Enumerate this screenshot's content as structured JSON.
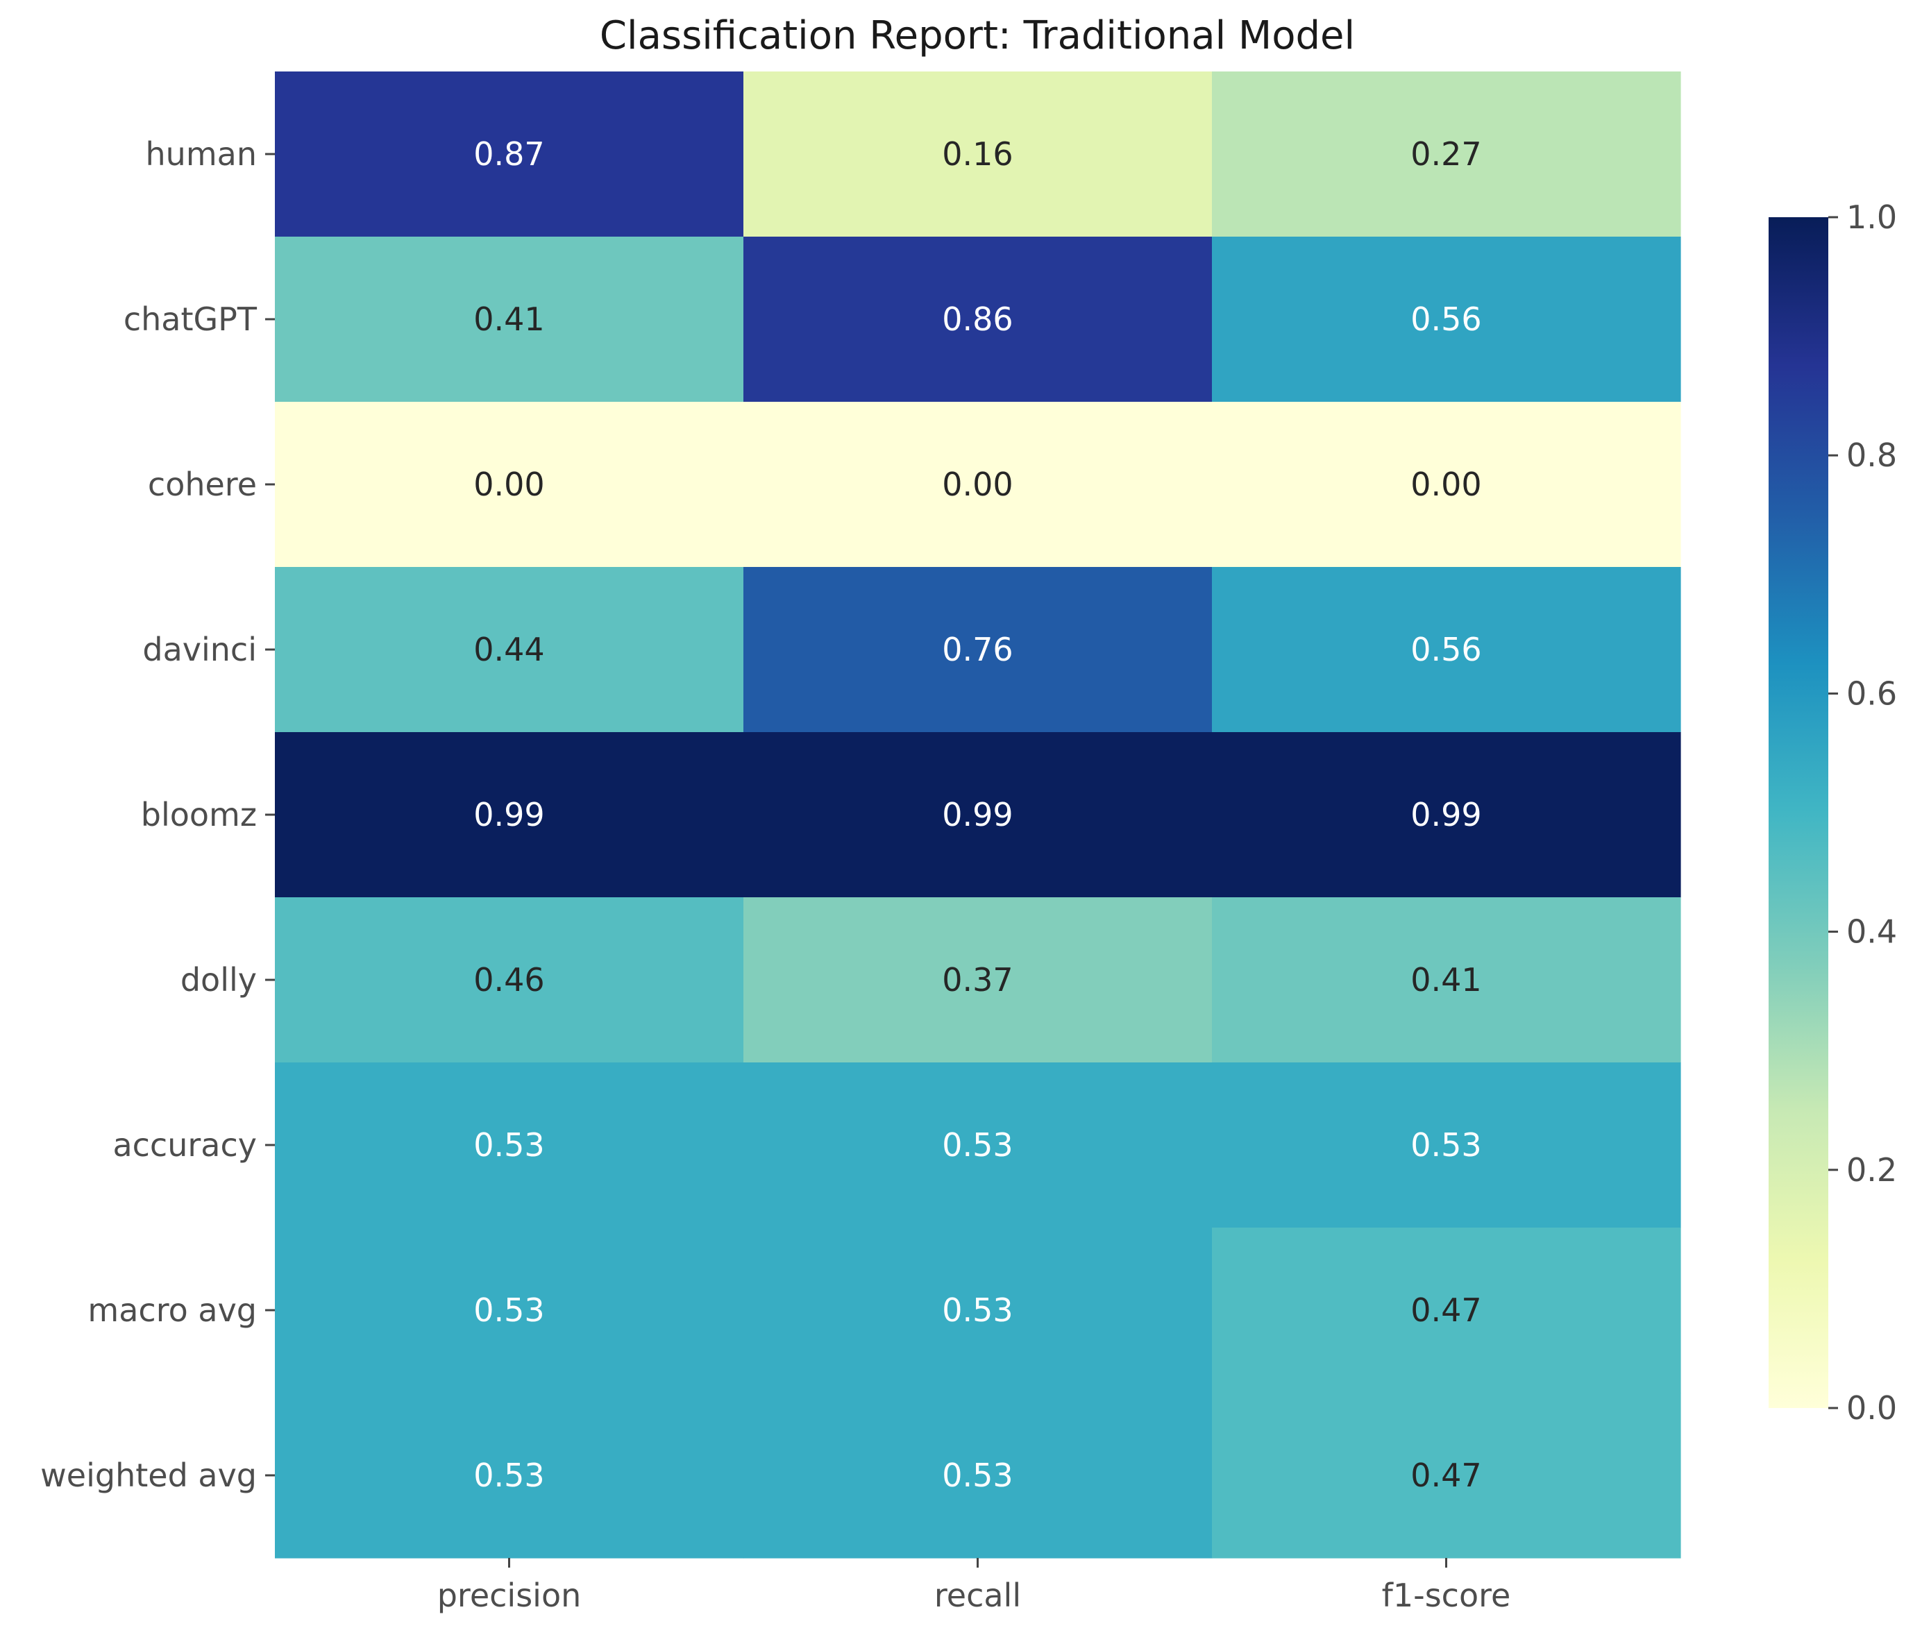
{
  "chart_data": {
    "type": "heatmap",
    "title": "Classification Report: Traditional Model",
    "xlabel": "",
    "ylabel": "",
    "columns": [
      "precision",
      "recall",
      "f1-score"
    ],
    "rows": [
      "human",
      "chatGPT",
      "cohere",
      "davinci",
      "bloomz",
      "dolly",
      "accuracy",
      "macro avg",
      "weighted avg"
    ],
    "values": [
      [
        0.87,
        0.16,
        0.27
      ],
      [
        0.41,
        0.86,
        0.56
      ],
      [
        0.0,
        0.0,
        0.0
      ],
      [
        0.44,
        0.76,
        0.56
      ],
      [
        0.99,
        0.99,
        0.99
      ],
      [
        0.46,
        0.37,
        0.41
      ],
      [
        0.53,
        0.53,
        0.53
      ],
      [
        0.53,
        0.53,
        0.47
      ],
      [
        0.53,
        0.53,
        0.47
      ]
    ],
    "value_range": [
      0.0,
      1.0
    ],
    "colormap": "YlGnBu",
    "colorbar_ticks": [
      "0.0",
      "0.2",
      "0.4",
      "0.6",
      "0.8",
      "1.0"
    ],
    "annotations": true
  }
}
